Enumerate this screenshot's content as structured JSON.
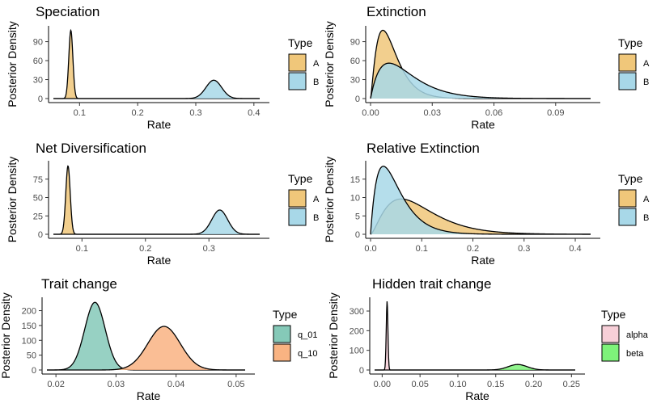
{
  "chart_data": [
    {
      "type": "area",
      "title": "Speciation",
      "xlabel": "Rate",
      "ylabel": "Posterior Density",
      "xlim": [
        0.055,
        0.41
      ],
      "ylim": [
        0,
        115
      ],
      "xticks": [
        0.1,
        0.2,
        0.3,
        0.4
      ],
      "xtick_labels": [
        "0.1",
        "0.2",
        "0.3",
        "0.4"
      ],
      "yticks": [
        0,
        30,
        60,
        90
      ],
      "ytick_labels": [
        "0",
        "30",
        "60",
        "90"
      ],
      "legend_title": "Type",
      "legend_position": "right",
      "series": [
        {
          "name": "A",
          "color": "#f0c77a",
          "shape": "normal",
          "mean": 0.085,
          "sd": 0.0035,
          "peak": 108
        },
        {
          "name": "B",
          "color": "#a8d8e8",
          "shape": "normal",
          "mean": 0.331,
          "sd": 0.0135,
          "peak": 29
        }
      ]
    },
    {
      "type": "area",
      "title": "Extinction",
      "xlabel": "Rate",
      "ylabel": "Posterior Density",
      "xlim": [
        0,
        0.107
      ],
      "ylim": [
        0,
        115
      ],
      "xticks": [
        0,
        0.03,
        0.06,
        0.09
      ],
      "xtick_labels": [
        "0.00",
        "0.03",
        "0.06",
        "0.09"
      ],
      "yticks": [
        0,
        30,
        60,
        90
      ],
      "ytick_labels": [
        "0",
        "30",
        "60",
        "90"
      ],
      "legend_title": "Type",
      "legend_position": "right",
      "series": [
        {
          "name": "A",
          "color": "#f0c77a",
          "shape": "gamma",
          "mode": 0.006,
          "scale": 0.0045,
          "peak": 108
        },
        {
          "name": "B",
          "color": "#a8d8e8",
          "shape": "gamma",
          "mode": 0.009,
          "scale": 0.009,
          "peak": 56
        }
      ]
    },
    {
      "type": "area",
      "title": "Net Diversification",
      "xlabel": "Rate",
      "ylabel": "Posterior Density",
      "xlim": [
        0.055,
        0.38
      ],
      "ylim": [
        0,
        100
      ],
      "xticks": [
        0.1,
        0.2,
        0.3
      ],
      "xtick_labels": [
        "0.1",
        "0.2",
        "0.3"
      ],
      "yticks": [
        0,
        25,
        50,
        75
      ],
      "ytick_labels": [
        "0",
        "25",
        "50",
        "75"
      ],
      "legend_title": "Type",
      "legend_position": "right",
      "series": [
        {
          "name": "A",
          "color": "#f0c77a",
          "shape": "normal",
          "mean": 0.078,
          "sd": 0.0035,
          "peak": 93
        },
        {
          "name": "B",
          "color": "#a8d8e8",
          "shape": "normal",
          "mean": 0.317,
          "sd": 0.0125,
          "peak": 33
        }
      ]
    },
    {
      "type": "area",
      "title": "Relative Extinction",
      "xlabel": "Rate",
      "ylabel": "Posterior Density",
      "xlim": [
        0,
        0.43
      ],
      "ylim": [
        0,
        20
      ],
      "xticks": [
        0,
        0.1,
        0.2,
        0.3,
        0.4
      ],
      "xtick_labels": [
        "0.0",
        "0.1",
        "0.2",
        "0.3",
        "0.4"
      ],
      "yticks": [
        0,
        5,
        10,
        15
      ],
      "ytick_labels": [
        "0",
        "5",
        "10",
        "15"
      ],
      "legend_title": "Type",
      "legend_position": "right",
      "series": [
        {
          "name": "A",
          "color": "#f0c77a",
          "shape": "gamma",
          "mode": 0.06,
          "scale": 0.038,
          "peak": 9.6
        },
        {
          "name": "B",
          "color": "#a8d8e8",
          "shape": "gamma",
          "mode": 0.025,
          "scale": 0.025,
          "peak": 18.5
        }
      ]
    },
    {
      "type": "area",
      "title": "Trait change",
      "xlabel": "Rate",
      "ylabel": "Posterior Density",
      "xlim": [
        0.0185,
        0.0515
      ],
      "ylim": [
        0,
        245
      ],
      "xticks": [
        0.02,
        0.03,
        0.04,
        0.05
      ],
      "xtick_labels": [
        "0.02",
        "0.03",
        "0.04",
        "0.05"
      ],
      "yticks": [
        0,
        50,
        100,
        150,
        200
      ],
      "ytick_labels": [
        "0",
        "50",
        "100",
        "150",
        "200"
      ],
      "legend_title": "Type",
      "legend_position": "right",
      "series": [
        {
          "name": "q_01",
          "color": "#85c9b8",
          "shape": "normal",
          "mean": 0.0265,
          "sd": 0.0017,
          "peak": 228
        },
        {
          "name": "q_10",
          "color": "#f9b382",
          "shape": "normal",
          "mean": 0.038,
          "sd": 0.0027,
          "peak": 147
        }
      ]
    },
    {
      "type": "area",
      "title": "Hidden trait change",
      "xlabel": "Rate",
      "ylabel": "Posterior Density",
      "xlim": [
        -0.01,
        0.255
      ],
      "ylim": [
        0,
        370
      ],
      "xticks": [
        0,
        0.05,
        0.1,
        0.15,
        0.2,
        0.25
      ],
      "xtick_labels": [
        "0.00",
        "0.05",
        "0.10",
        "0.15",
        "0.20",
        "0.25"
      ],
      "yticks": [
        0,
        100,
        200,
        300
      ],
      "ytick_labels": [
        "0",
        "100",
        "200",
        "300"
      ],
      "legend_title": "Type",
      "legend_position": "right",
      "series": [
        {
          "name": "alpha",
          "color": "#f7cfd8",
          "shape": "normal",
          "mean": 0.0065,
          "sd": 0.0011,
          "peak": 350
        },
        {
          "name": "beta",
          "color": "#7ef27a",
          "shape": "normal",
          "mean": 0.179,
          "sd": 0.0125,
          "peak": 28
        }
      ]
    }
  ]
}
